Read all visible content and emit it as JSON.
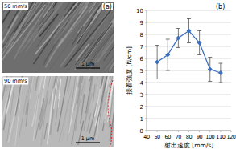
{
  "panel_a": {
    "label": "(a)",
    "images": [
      {
        "label": "50 mm/s",
        "scale_bar": "1 μm"
      },
      {
        "label": "90 mm/s",
        "scale_bar": "1 μm"
      }
    ]
  },
  "chart_data": {
    "type": "line",
    "annotations": [
      "(b)"
    ],
    "x_label": "射出速度 [mm/s]",
    "y_label": "接着強度 [N/cm]",
    "x": [
      50,
      60,
      70,
      80,
      90,
      100,
      110
    ],
    "values": [
      5.7,
      6.3,
      7.7,
      8.3,
      7.3,
      5.1,
      4.8
    ],
    "errors": [
      1.4,
      1.3,
      0.8,
      1.0,
      1.0,
      1.0,
      0.8
    ],
    "color": "#3b6fc0",
    "marker": "diamond",
    "grid": true,
    "xlim": [
      40,
      120
    ],
    "xticks": [
      40,
      50,
      60,
      70,
      80,
      90,
      100,
      110,
      120
    ],
    "ylim": [
      0,
      10
    ],
    "yticks": [
      0,
      1,
      2,
      3,
      4,
      5,
      6,
      7,
      8,
      9,
      10
    ]
  }
}
